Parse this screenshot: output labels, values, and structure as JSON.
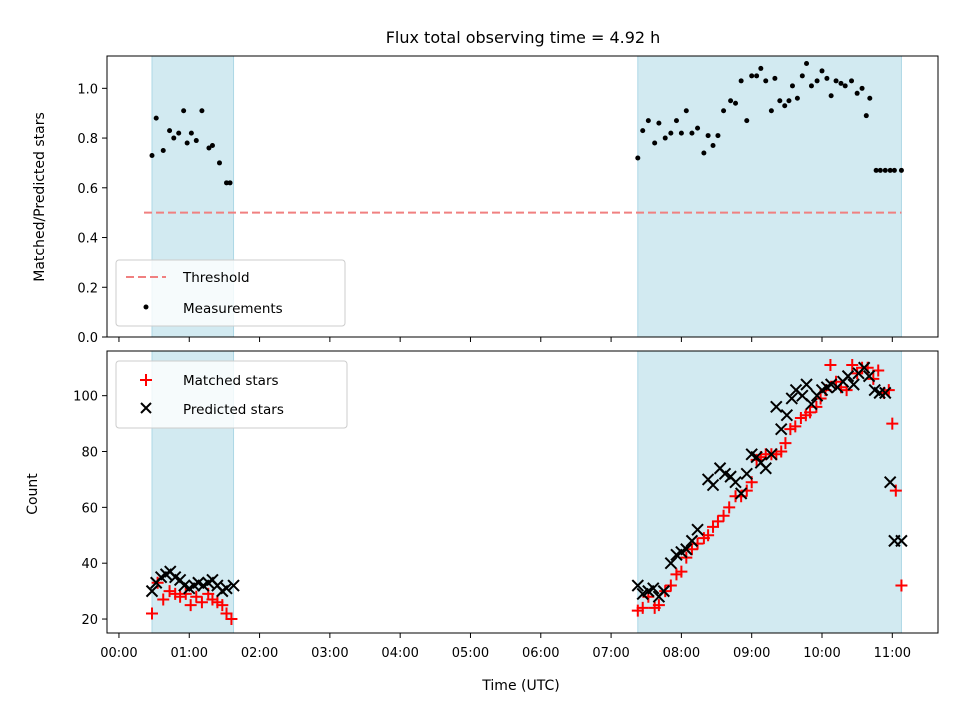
{
  "chart_data": [
    {
      "type": "scatter",
      "title": "Flux total observing time = 4.92 h",
      "xlabel": "",
      "ylabel": "Matched/Predicted stars",
      "ylim": [
        0.0,
        1.13
      ],
      "yticks": [
        "0.0",
        "0.2",
        "0.4",
        "0.6",
        "0.8",
        "1.0"
      ],
      "xlim_hours": [
        -0.17,
        11.65
      ],
      "observing_windows_hours": [
        [
          0.47,
          1.63
        ],
        [
          7.38,
          11.13
        ]
      ],
      "threshold": 0.5,
      "legend": {
        "position": "lower-left",
        "entries": [
          "Threshold",
          "Measurements"
        ]
      },
      "colors": {
        "measurements": "#000000",
        "threshold": "#f08080",
        "window": "#add8e6"
      },
      "series": [
        {
          "name": "Measurements",
          "x": [
            0.47,
            0.53,
            0.63,
            0.72,
            0.78,
            0.85,
            0.92,
            0.97,
            1.03,
            1.1,
            1.18,
            1.28,
            1.33,
            1.43,
            1.53,
            1.58,
            7.38,
            7.45,
            7.53,
            7.62,
            7.68,
            7.77,
            7.85,
            7.93,
            8.0,
            8.07,
            8.15,
            8.23,
            8.32,
            8.38,
            8.45,
            8.52,
            8.6,
            8.7,
            8.77,
            8.85,
            8.93,
            9.0,
            9.07,
            9.13,
            9.2,
            9.28,
            9.33,
            9.4,
            9.47,
            9.53,
            9.58,
            9.65,
            9.72,
            9.78,
            9.85,
            9.93,
            10.0,
            10.07,
            10.13,
            10.2,
            10.27,
            10.33,
            10.42,
            10.5,
            10.57,
            10.63,
            10.68,
            10.77,
            10.83,
            10.9,
            10.97,
            11.03,
            11.13
          ],
          "y": [
            0.73,
            0.88,
            0.75,
            0.83,
            0.8,
            0.82,
            0.91,
            0.78,
            0.82,
            0.79,
            0.91,
            0.76,
            0.77,
            0.7,
            0.62,
            0.62,
            0.72,
            0.83,
            0.87,
            0.78,
            0.86,
            0.8,
            0.82,
            0.87,
            0.82,
            0.91,
            0.82,
            0.84,
            0.74,
            0.81,
            0.77,
            0.81,
            0.91,
            0.95,
            0.94,
            1.03,
            0.87,
            1.05,
            1.05,
            1.08,
            1.03,
            0.91,
            1.04,
            0.95,
            0.93,
            0.95,
            1.01,
            0.96,
            1.05,
            1.1,
            1.01,
            1.03,
            1.07,
            1.04,
            0.97,
            1.03,
            1.02,
            1.01,
            1.03,
            0.98,
            1.0,
            0.89,
            0.96,
            0.67,
            0.67,
            0.67,
            0.67,
            0.67,
            0.67
          ]
        }
      ]
    },
    {
      "type": "scatter",
      "title": "",
      "xlabel": "Time (UTC)",
      "ylabel": "Count",
      "ylim": [
        15,
        116
      ],
      "yticks": [
        "20",
        "40",
        "60",
        "80",
        "100"
      ],
      "xticks": [
        "00:00",
        "01:00",
        "02:00",
        "03:00",
        "04:00",
        "05:00",
        "06:00",
        "07:00",
        "08:00",
        "09:00",
        "10:00",
        "11:00"
      ],
      "xlim_hours": [
        -0.17,
        11.65
      ],
      "observing_windows_hours": [
        [
          0.47,
          1.63
        ],
        [
          7.38,
          11.13
        ]
      ],
      "legend": {
        "position": "top-left",
        "entries": [
          "Matched stars",
          "Predicted stars"
        ]
      },
      "colors": {
        "matched": "#ff0000",
        "predicted": "#000000",
        "window": "#add8e6"
      },
      "series": [
        {
          "name": "Matched stars",
          "x": [
            0.47,
            0.55,
            0.63,
            0.72,
            0.8,
            0.87,
            0.95,
            1.02,
            1.1,
            1.18,
            1.27,
            1.33,
            1.4,
            1.47,
            1.53,
            1.6,
            7.38,
            7.45,
            7.53,
            7.62,
            7.68,
            7.77,
            7.85,
            7.93,
            8.0,
            8.07,
            8.15,
            8.23,
            8.32,
            8.38,
            8.45,
            8.52,
            8.6,
            8.68,
            8.77,
            8.85,
            8.93,
            9.0,
            9.07,
            9.13,
            9.2,
            9.28,
            9.35,
            9.42,
            9.48,
            9.55,
            9.62,
            9.7,
            9.77,
            9.83,
            9.92,
            9.98,
            10.05,
            10.12,
            10.2,
            10.27,
            10.35,
            10.43,
            10.5,
            10.57,
            10.65,
            10.73,
            10.8,
            10.88,
            10.95,
            11.0,
            11.05,
            11.13
          ],
          "y": [
            22,
            33,
            27,
            30,
            29,
            28,
            29,
            25,
            28,
            26,
            29,
            27,
            26,
            25,
            22,
            20,
            23,
            24,
            28,
            24,
            25,
            30,
            32,
            36,
            37,
            42,
            45,
            47,
            49,
            50,
            53,
            55,
            57,
            60,
            64,
            64,
            66,
            69,
            77,
            78,
            79,
            79,
            79,
            80,
            83,
            88,
            89,
            92,
            93,
            94,
            96,
            99,
            102,
            111,
            105,
            103,
            102,
            111,
            108,
            110,
            110,
            106,
            109,
            101,
            102,
            90,
            66,
            32
          ]
        },
        {
          "name": "Predicted stars",
          "x": [
            0.47,
            0.53,
            0.6,
            0.67,
            0.73,
            0.8,
            0.87,
            0.93,
            1.0,
            1.07,
            1.13,
            1.2,
            1.27,
            1.33,
            1.4,
            1.47,
            1.53,
            1.63,
            7.38,
            7.45,
            7.53,
            7.6,
            7.68,
            7.75,
            7.85,
            7.93,
            8.0,
            8.07,
            8.15,
            8.23,
            8.38,
            8.45,
            8.55,
            8.62,
            8.7,
            8.77,
            8.85,
            8.93,
            9.0,
            9.07,
            9.13,
            9.2,
            9.28,
            9.35,
            9.42,
            9.5,
            9.57,
            9.63,
            9.72,
            9.78,
            9.85,
            9.93,
            10.0,
            10.07,
            10.13,
            10.22,
            10.3,
            10.37,
            10.45,
            10.52,
            10.6,
            10.67,
            10.75,
            10.82,
            10.9,
            10.97,
            11.03,
            11.13
          ],
          "y": [
            30,
            33,
            35,
            36,
            37,
            35,
            34,
            32,
            31,
            32,
            33,
            32,
            33,
            34,
            32,
            30,
            31,
            32,
            32,
            29,
            30,
            31,
            28,
            30,
            40,
            43,
            44,
            45,
            48,
            52,
            70,
            68,
            74,
            72,
            71,
            69,
            65,
            72,
            79,
            78,
            76,
            74,
            79,
            96,
            88,
            93,
            99,
            102,
            100,
            104,
            97,
            100,
            102,
            103,
            104,
            103,
            105,
            107,
            104,
            108,
            110,
            107,
            102,
            101,
            101,
            69,
            48,
            48
          ]
        }
      ]
    }
  ]
}
